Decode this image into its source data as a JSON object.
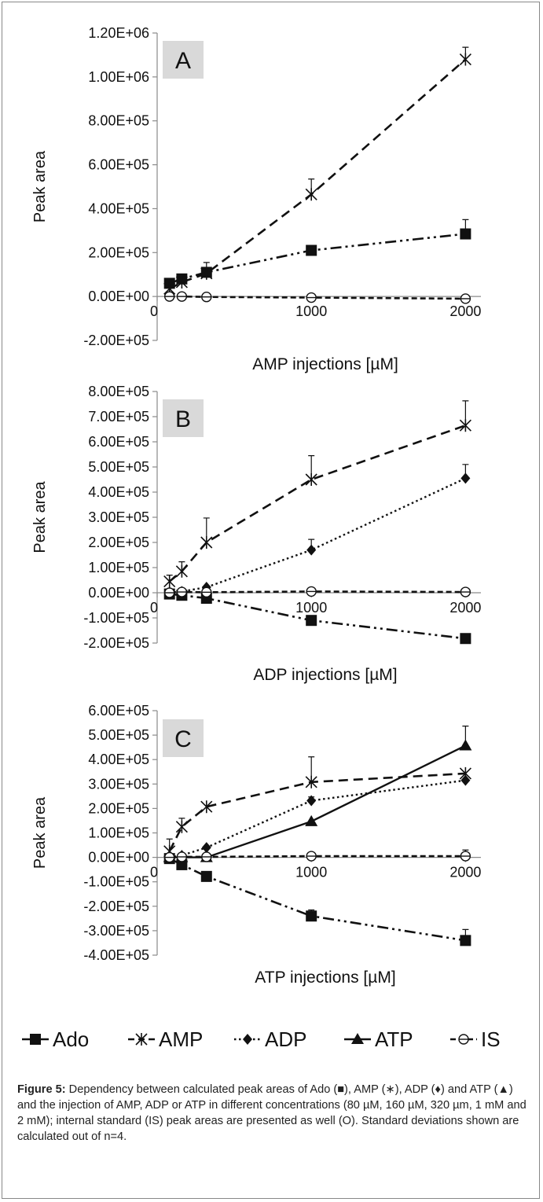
{
  "chart_data": [
    {
      "type": "line",
      "panel_label": "A",
      "xlabel": "AMP injections [µM]",
      "ylabel": "Peak area",
      "xlim": [
        0,
        2100
      ],
      "ylim": [
        -200000,
        1200000
      ],
      "xticks": [
        0,
        1000,
        2000
      ],
      "yticks": [
        -200000,
        0,
        200000,
        400000,
        600000,
        800000,
        1000000,
        1200000
      ],
      "ytick_labels": [
        "-2.00E+05",
        "0.00E+00",
        "2.00E+05",
        "4.00E+05",
        "6.00E+05",
        "8.00E+05",
        "1.00E+06",
        "1.20E+06"
      ],
      "x": [
        80,
        160,
        320,
        1000,
        2000
      ],
      "series": [
        {
          "name": "Ado",
          "values": [
            60000,
            80000,
            110000,
            210000,
            285000
          ],
          "errors": [
            0,
            0,
            45000,
            0,
            65000
          ]
        },
        {
          "name": "AMP",
          "values": [
            35000,
            65000,
            105000,
            465000,
            1080000
          ],
          "errors": [
            0,
            0,
            0,
            70000,
            55000
          ]
        },
        {
          "name": "IS",
          "values": [
            0,
            0,
            -2000,
            -5000,
            -10000
          ],
          "errors": [
            0,
            0,
            0,
            0,
            0
          ]
        }
      ]
    },
    {
      "type": "line",
      "panel_label": "B",
      "xlabel": "ADP injections [µM]",
      "ylabel": "Peak area",
      "xlim": [
        0,
        2100
      ],
      "ylim": [
        -200000,
        800000
      ],
      "xticks": [
        0,
        1000,
        2000
      ],
      "yticks": [
        -200000,
        -100000,
        0,
        100000,
        200000,
        300000,
        400000,
        500000,
        600000,
        700000,
        800000
      ],
      "ytick_labels": [
        "-2.00E+05",
        "-1.00E+05",
        "0.00E+00",
        "1.00E+05",
        "2.00E+05",
        "3.00E+05",
        "4.00E+05",
        "5.00E+05",
        "6.00E+05",
        "7.00E+05",
        "8.00E+05"
      ],
      "x": [
        80,
        160,
        320,
        1000,
        2000
      ],
      "series": [
        {
          "name": "Ado",
          "values": [
            -5000,
            -10000,
            -22000,
            -110000,
            -182000
          ],
          "errors": [
            0,
            0,
            0,
            0,
            0
          ]
        },
        {
          "name": "AMP",
          "values": [
            45000,
            85000,
            200000,
            450000,
            665000
          ],
          "errors": [
            25000,
            38000,
            97000,
            95000,
            98000
          ]
        },
        {
          "name": "ADP",
          "values": [
            0,
            5000,
            22000,
            170000,
            455000
          ],
          "errors": [
            0,
            0,
            0,
            42000,
            55000
          ]
        },
        {
          "name": "IS",
          "values": [
            0,
            3000,
            2000,
            5000,
            3000
          ],
          "errors": [
            0,
            0,
            0,
            0,
            0
          ]
        }
      ]
    },
    {
      "type": "line",
      "panel_label": "C",
      "xlabel": "ATP injections [µM]",
      "ylabel": "Peak area",
      "xlim": [
        0,
        2100
      ],
      "ylim": [
        -400000,
        600000
      ],
      "xticks": [
        0,
        1000,
        2000
      ],
      "yticks": [
        -400000,
        -300000,
        -200000,
        -100000,
        0,
        100000,
        200000,
        300000,
        400000,
        500000,
        600000
      ],
      "ytick_labels": [
        "-4.00E+05",
        "-3.00E+05",
        "-2.00E+05",
        "-1.00E+05",
        "0.00E+00",
        "1.00E+05",
        "2.00E+05",
        "3.00E+05",
        "4.00E+05",
        "5.00E+05",
        "6.00E+05"
      ],
      "x": [
        80,
        160,
        320,
        1000,
        2000
      ],
      "series": [
        {
          "name": "Ado",
          "values": [
            -5000,
            -30000,
            -78000,
            -240000,
            -340000
          ],
          "errors": [
            0,
            0,
            0,
            25000,
            45000
          ]
        },
        {
          "name": "AMP",
          "values": [
            25000,
            125000,
            207000,
            308000,
            343000
          ],
          "errors": [
            50000,
            35000,
            0,
            103000,
            0
          ]
        },
        {
          "name": "ADP",
          "values": [
            0,
            8000,
            40000,
            232000,
            315000
          ],
          "errors": [
            0,
            0,
            0,
            15000,
            0
          ]
        },
        {
          "name": "ATP",
          "values": [
            0,
            0,
            0,
            147000,
            457000
          ],
          "errors": [
            0,
            0,
            0,
            0,
            80000
          ]
        },
        {
          "name": "IS",
          "values": [
            0,
            2000,
            2000,
            5000,
            5000
          ],
          "errors": [
            0,
            0,
            0,
            0,
            25000
          ]
        }
      ]
    }
  ],
  "legend": {
    "position": "bottom",
    "items": [
      {
        "label": "Ado"
      },
      {
        "label": "AMP"
      },
      {
        "label": "ADP"
      },
      {
        "label": "ATP"
      },
      {
        "label": "IS"
      }
    ]
  },
  "caption": {
    "label": "Figure 5:",
    "text": " Dependency between calculated peak areas of Ado (■), AMP (∗), ADP (♦) and ATP (▲) and the injection of AMP, ADP or ATP in different concentrations (80 µM, 160 µM, 320 µm, 1 mM and 2 mM); internal standard (IS) peak areas are presented as well (O). Standard deviations shown are calculated out of n=4."
  }
}
